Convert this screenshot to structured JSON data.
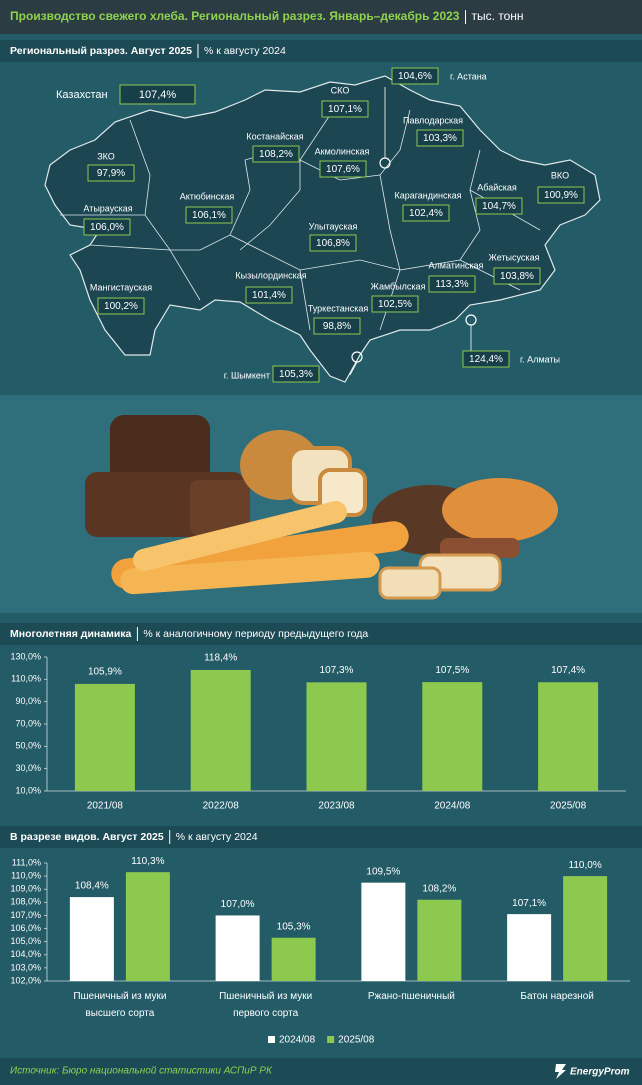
{
  "header": {
    "title": "Производство свежего хлеба. Региональный разрез. Январь–декабрь 2023",
    "unit": "тыс. тонн"
  },
  "map": {
    "title": "Региональный разрез. Август 2025",
    "unit": "% к августу 2024",
    "regions": [
      {
        "name": "Казахстан",
        "value": "107,4%"
      },
      {
        "name": "СКО",
        "value": "107,1%"
      },
      {
        "name": "г. Астана",
        "value": "104,6%"
      },
      {
        "name": "Павлодарская",
        "value": "103,3%"
      },
      {
        "name": "Костанайская",
        "value": "108,2%"
      },
      {
        "name": "Акмолинская",
        "value": "107,6%"
      },
      {
        "name": "ЗКО",
        "value": "97,9%"
      },
      {
        "name": "ВКО",
        "value": "100,9%"
      },
      {
        "name": "Абайская",
        "value": "104,7%"
      },
      {
        "name": "Актюбинская",
        "value": "106,1%"
      },
      {
        "name": "Карагандинская",
        "value": "102,4%"
      },
      {
        "name": "Атырауская",
        "value": "106,0%"
      },
      {
        "name": "Улытауская",
        "value": "106,8%"
      },
      {
        "name": "Жетысуская",
        "value": "103,8%"
      },
      {
        "name": "Кызылординская",
        "value": "101,4%"
      },
      {
        "name": "Алматинская",
        "value": "113,3%"
      },
      {
        "name": "Мангистауская",
        "value": "100,2%"
      },
      {
        "name": "Жамбылская",
        "value": "102,5%"
      },
      {
        "name": "Туркестанская",
        "value": "98,8%"
      },
      {
        "name": "г. Шымкент",
        "value": "105,3%"
      },
      {
        "name": "г. Алматы",
        "value": "124,4%"
      }
    ]
  },
  "chart_data": [
    {
      "type": "bar",
      "title": "Многолетняя динамика",
      "subtitle": "% к аналогичному периоду предыдущего года",
      "categories": [
        "2021/08",
        "2022/08",
        "2023/08",
        "2024/08",
        "2025/08"
      ],
      "values": [
        105.9,
        118.4,
        107.3,
        107.5,
        107.4
      ],
      "value_labels": [
        "105,9%",
        "118,4%",
        "107,3%",
        "107,5%",
        "107,4%"
      ],
      "color": "#8dc94e",
      "ylim": [
        10,
        130
      ],
      "yticks": [
        {
          "value": 10,
          "label": "10,0%"
        },
        {
          "value": 30,
          "label": "30,0%"
        },
        {
          "value": 50,
          "label": "50,0%"
        },
        {
          "value": 70,
          "label": "70,0%"
        },
        {
          "value": 90,
          "label": "90,0%"
        },
        {
          "value": 110,
          "label": "110,0%"
        },
        {
          "value": 130,
          "label": "130,0%"
        }
      ]
    },
    {
      "type": "grouped_bar",
      "title": "В разрезе видов. Август 2025",
      "subtitle": "% к августу 2024",
      "categories": [
        "Пшеничный из муки высшего сорта",
        "Пшеничный из муки первого сорта",
        "Ржано-пшеничный",
        "Батон нарезной"
      ],
      "series": [
        {
          "name": "2024/08",
          "color": "#ffffff",
          "values": [
            108.4,
            107.0,
            109.5,
            107.1
          ],
          "value_labels": [
            "108,4%",
            "107,0%",
            "109,5%",
            "107,1%"
          ]
        },
        {
          "name": "2025/08",
          "color": "#8dc94e",
          "values": [
            110.3,
            105.3,
            108.2,
            110.0
          ],
          "value_labels": [
            "110,3%",
            "105,3%",
            "108,2%",
            "110,0%"
          ]
        }
      ],
      "ylim": [
        102,
        111
      ],
      "yticks": [
        {
          "value": 102,
          "label": "102,0%"
        },
        {
          "value": 103,
          "label": "103,0%"
        },
        {
          "value": 104,
          "label": "104,0%"
        },
        {
          "value": 105,
          "label": "105,0%"
        },
        {
          "value": 106,
          "label": "106,0%"
        },
        {
          "value": 107,
          "label": "107,0%"
        },
        {
          "value": 108,
          "label": "108,0%"
        },
        {
          "value": 109,
          "label": "109,0%"
        },
        {
          "value": 110,
          "label": "110,0%"
        },
        {
          "value": 111,
          "label": "111,0%"
        }
      ],
      "legend": "bottom"
    }
  ],
  "footer": {
    "source": "Источник: Бюро национальной статистики АСПиР РК",
    "brand": "EnergyProm"
  }
}
